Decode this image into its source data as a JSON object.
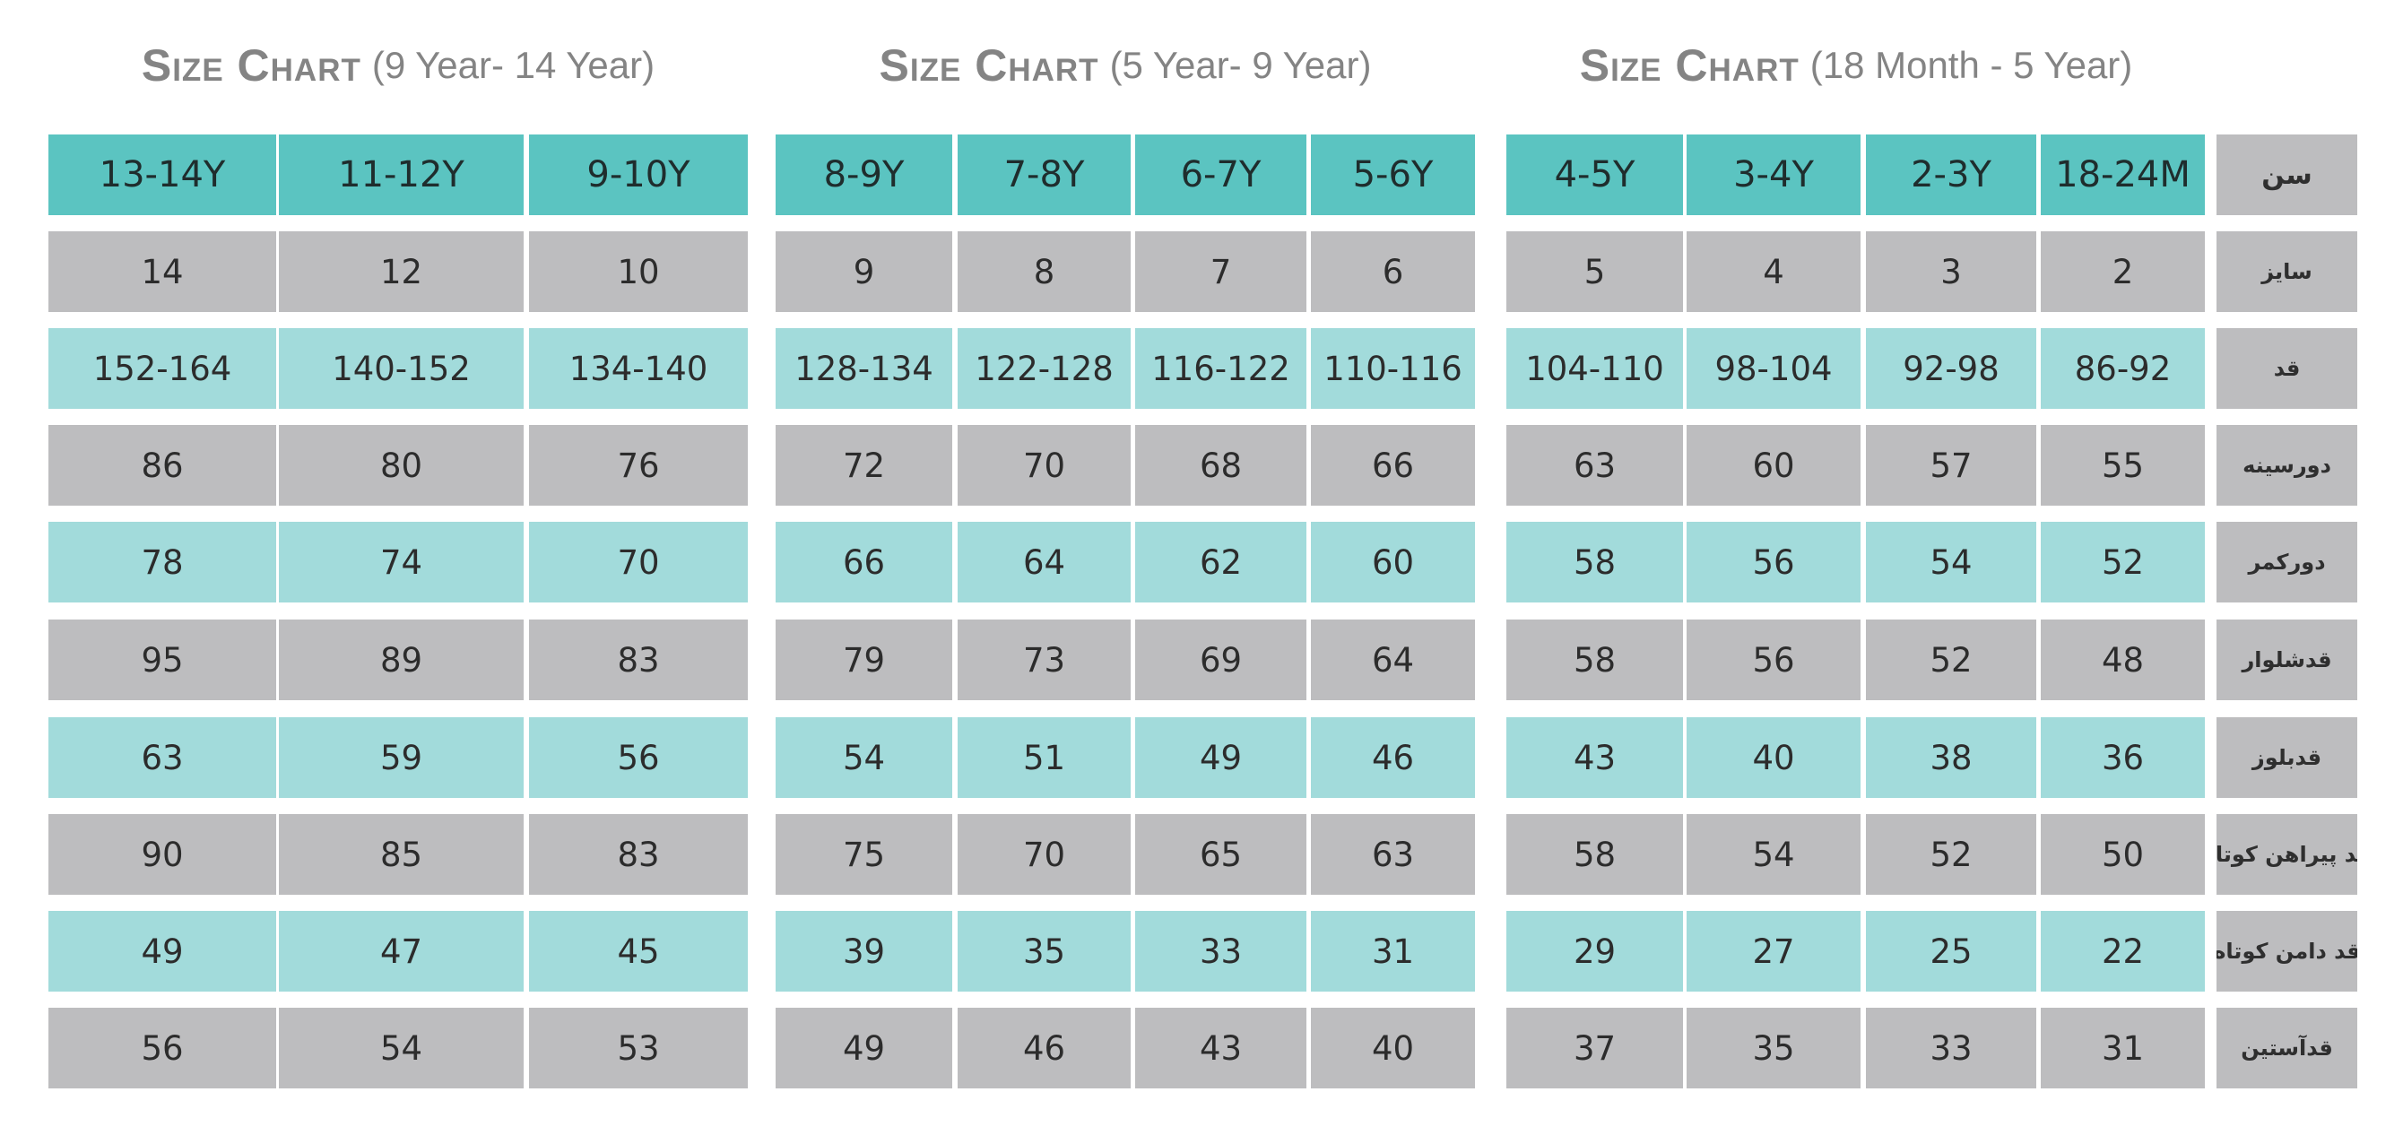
{
  "colors": {
    "header_bg": "#5bc4c1",
    "light_teal_bg": "#a2dbdb",
    "gray_bg": "#bdbdbf",
    "label_bg": "#bdbdbf",
    "title_text": "#848484"
  },
  "sections": [
    {
      "title": "Size Chart",
      "range": "(9 Year- 14 Year)",
      "columns": [
        "13-14Y",
        "11-12Y",
        "9-10Y"
      ],
      "rows": [
        [
          "14",
          "12",
          "10"
        ],
        [
          "152-164",
          "140-152",
          "134-140"
        ],
        [
          "86",
          "80",
          "76"
        ],
        [
          "78",
          "74",
          "70"
        ],
        [
          "95",
          "89",
          "83"
        ],
        [
          "63",
          "59",
          "56"
        ],
        [
          "90",
          "85",
          "83"
        ],
        [
          "49",
          "47",
          "45"
        ],
        [
          "56",
          "54",
          "53"
        ]
      ]
    },
    {
      "title": "Size Chart",
      "range": "(5 Year- 9 Year)",
      "columns": [
        "8-9Y",
        "7-8Y",
        "6-7Y",
        "5-6Y"
      ],
      "rows": [
        [
          "9",
          "8",
          "7",
          "6"
        ],
        [
          "128-134",
          "122-128",
          "116-122",
          "110-116"
        ],
        [
          "72",
          "70",
          "68",
          "66"
        ],
        [
          "66",
          "64",
          "62",
          "60"
        ],
        [
          "79",
          "73",
          "69",
          "64"
        ],
        [
          "54",
          "51",
          "49",
          "46"
        ],
        [
          "75",
          "70",
          "65",
          "63"
        ],
        [
          "39",
          "35",
          "33",
          "31"
        ],
        [
          "49",
          "46",
          "43",
          "40"
        ]
      ]
    },
    {
      "title": "Size Chart",
      "range": "(18 Month - 5 Year)",
      "columns": [
        "4-5Y",
        "3-4Y",
        "2-3Y",
        "18-24M"
      ],
      "rows": [
        [
          "5",
          "4",
          "3",
          "2"
        ],
        [
          "104-110",
          "98-104",
          "92-98",
          "86-92"
        ],
        [
          "63",
          "60",
          "57",
          "55"
        ],
        [
          "58",
          "56",
          "54",
          "52"
        ],
        [
          "58",
          "56",
          "52",
          "48"
        ],
        [
          "43",
          "40",
          "38",
          "36"
        ],
        [
          "58",
          "54",
          "52",
          "50"
        ],
        [
          "29",
          "27",
          "25",
          "22"
        ],
        [
          "37",
          "35",
          "33",
          "31"
        ]
      ]
    }
  ],
  "row_labels": {
    "header": "سن",
    "rows": [
      "سایز",
      "قد",
      "دورسینه",
      "دورکمر",
      "قدشلوار",
      "قدبلوز",
      "قد پیراهن کوتاه",
      "قد دامن کوتاه",
      "قدآستین"
    ]
  }
}
